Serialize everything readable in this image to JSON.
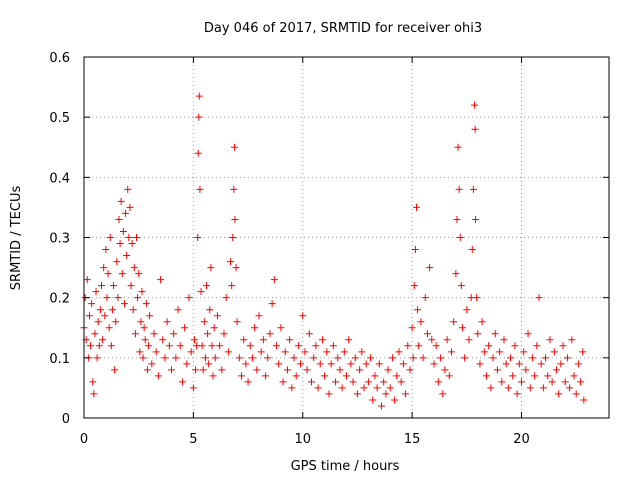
{
  "chart_data": {
    "type": "scatter",
    "title": "Day 046 of 2017, SRMTID for receiver ohi3",
    "xlabel": "GPS time / hours",
    "ylabel": "SRMTID / TECUs",
    "xlim": [
      0,
      24
    ],
    "ylim": [
      0,
      0.6
    ],
    "xticks": [
      0,
      5,
      10,
      15,
      20
    ],
    "yticks": [
      0,
      0.1,
      0.2,
      0.3,
      0.4,
      0.5,
      0.6
    ],
    "xtick_labels": [
      "0",
      "5",
      "10",
      "15",
      "20"
    ],
    "ytick_labels": [
      "0",
      "0.1",
      "0.2",
      "0.3",
      "0.4",
      "0.5",
      "0.6"
    ],
    "grid": true,
    "marker": "plus",
    "marker_color": "#ff0000",
    "series": [
      {
        "name": "SRMTID",
        "points": [
          [
            0.0,
            0.15
          ],
          [
            0.05,
            0.2
          ],
          [
            0.1,
            0.13
          ],
          [
            0.15,
            0.23
          ],
          [
            0.2,
            0.1
          ],
          [
            0.25,
            0.17
          ],
          [
            0.3,
            0.12
          ],
          [
            0.35,
            0.19
          ],
          [
            0.4,
            0.06
          ],
          [
            0.45,
            0.04
          ],
          [
            0.5,
            0.14
          ],
          [
            0.55,
            0.21
          ],
          [
            0.6,
            0.1
          ],
          [
            0.65,
            0.16
          ],
          [
            0.7,
            0.12
          ],
          [
            0.75,
            0.18
          ],
          [
            0.8,
            0.22
          ],
          [
            0.85,
            0.13
          ],
          [
            0.9,
            0.25
          ],
          [
            0.95,
            0.17
          ],
          [
            1.0,
            0.28
          ],
          [
            1.05,
            0.2
          ],
          [
            1.1,
            0.24
          ],
          [
            1.15,
            0.15
          ],
          [
            1.2,
            0.3
          ],
          [
            1.25,
            0.12
          ],
          [
            1.3,
            0.18
          ],
          [
            1.35,
            0.22
          ],
          [
            1.4,
            0.08
          ],
          [
            1.45,
            0.16
          ],
          [
            1.5,
            0.26
          ],
          [
            1.55,
            0.2
          ],
          [
            1.6,
            0.33
          ],
          [
            1.65,
            0.29
          ],
          [
            1.7,
            0.36
          ],
          [
            1.75,
            0.24
          ],
          [
            1.8,
            0.31
          ],
          [
            1.85,
            0.19
          ],
          [
            1.9,
            0.34
          ],
          [
            1.95,
            0.27
          ],
          [
            2.0,
            0.38
          ],
          [
            2.05,
            0.3
          ],
          [
            2.1,
            0.35
          ],
          [
            2.15,
            0.22
          ],
          [
            2.2,
            0.29
          ],
          [
            2.25,
            0.18
          ],
          [
            2.3,
            0.25
          ],
          [
            2.35,
            0.14
          ],
          [
            2.4,
            0.3
          ],
          [
            2.45,
            0.2
          ],
          [
            2.5,
            0.24
          ],
          [
            2.55,
            0.11
          ],
          [
            2.6,
            0.16
          ],
          [
            2.65,
            0.21
          ],
          [
            2.7,
            0.1
          ],
          [
            2.75,
            0.15
          ],
          [
            2.8,
            0.13
          ],
          [
            2.85,
            0.19
          ],
          [
            2.9,
            0.08
          ],
          [
            2.95,
            0.12
          ],
          [
            3.0,
            0.17
          ],
          [
            3.1,
            0.09
          ],
          [
            3.2,
            0.14
          ],
          [
            3.3,
            0.11
          ],
          [
            3.4,
            0.07
          ],
          [
            3.5,
            0.23
          ],
          [
            3.6,
            0.13
          ],
          [
            3.7,
            0.1
          ],
          [
            3.8,
            0.16
          ],
          [
            3.9,
            0.12
          ],
          [
            4.0,
            0.08
          ],
          [
            4.1,
            0.14
          ],
          [
            4.2,
            0.1
          ],
          [
            4.3,
            0.18
          ],
          [
            4.4,
            0.12
          ],
          [
            4.5,
            0.06
          ],
          [
            4.6,
            0.15
          ],
          [
            4.7,
            0.09
          ],
          [
            4.8,
            0.2
          ],
          [
            4.9,
            0.11
          ],
          [
            5.0,
            0.05
          ],
          [
            5.05,
            0.13
          ],
          [
            5.1,
            0.08
          ],
          [
            5.15,
            0.12
          ],
          [
            5.2,
            0.3
          ],
          [
            5.22,
            0.44
          ],
          [
            5.25,
            0.5
          ],
          [
            5.27,
            0.535
          ],
          [
            5.3,
            0.38
          ],
          [
            5.35,
            0.21
          ],
          [
            5.4,
            0.12
          ],
          [
            5.45,
            0.08
          ],
          [
            5.5,
            0.16
          ],
          [
            5.55,
            0.1
          ],
          [
            5.6,
            0.22
          ],
          [
            5.65,
            0.14
          ],
          [
            5.7,
            0.09
          ],
          [
            5.75,
            0.18
          ],
          [
            5.8,
            0.25
          ],
          [
            5.85,
            0.12
          ],
          [
            5.9,
            0.07
          ],
          [
            5.95,
            0.15
          ],
          [
            6.0,
            0.1
          ],
          [
            6.1,
            0.17
          ],
          [
            6.2,
            0.12
          ],
          [
            6.3,
            0.08
          ],
          [
            6.4,
            0.14
          ],
          [
            6.5,
            0.2
          ],
          [
            6.6,
            0.11
          ],
          [
            6.7,
            0.26
          ],
          [
            6.75,
            0.22
          ],
          [
            6.8,
            0.3
          ],
          [
            6.85,
            0.38
          ],
          [
            6.88,
            0.45
          ],
          [
            6.9,
            0.33
          ],
          [
            6.95,
            0.25
          ],
          [
            7.0,
            0.16
          ],
          [
            7.1,
            0.1
          ],
          [
            7.2,
            0.07
          ],
          [
            7.3,
            0.13
          ],
          [
            7.4,
            0.09
          ],
          [
            7.5,
            0.06
          ],
          [
            7.6,
            0.12
          ],
          [
            7.7,
            0.1
          ],
          [
            7.8,
            0.15
          ],
          [
            7.9,
            0.08
          ],
          [
            8.0,
            0.17
          ],
          [
            8.1,
            0.11
          ],
          [
            8.2,
            0.13
          ],
          [
            8.3,
            0.07
          ],
          [
            8.4,
            0.1
          ],
          [
            8.5,
            0.14
          ],
          [
            8.6,
            0.19
          ],
          [
            8.7,
            0.23
          ],
          [
            8.8,
            0.12
          ],
          [
            8.9,
            0.09
          ],
          [
            9.0,
            0.15
          ],
          [
            9.1,
            0.06
          ],
          [
            9.2,
            0.11
          ],
          [
            9.3,
            0.08
          ],
          [
            9.4,
            0.13
          ],
          [
            9.5,
            0.05
          ],
          [
            9.6,
            0.1
          ],
          [
            9.7,
            0.07
          ],
          [
            9.8,
            0.12
          ],
          [
            9.9,
            0.09
          ],
          [
            10.0,
            0.17
          ],
          [
            10.1,
            0.11
          ],
          [
            10.2,
            0.08
          ],
          [
            10.3,
            0.14
          ],
          [
            10.4,
            0.06
          ],
          [
            10.5,
            0.1
          ],
          [
            10.6,
            0.12
          ],
          [
            10.7,
            0.05
          ],
          [
            10.8,
            0.09
          ],
          [
            10.9,
            0.13
          ],
          [
            11.0,
            0.07
          ],
          [
            11.1,
            0.11
          ],
          [
            11.2,
            0.04
          ],
          [
            11.3,
            0.09
          ],
          [
            11.4,
            0.12
          ],
          [
            11.5,
            0.06
          ],
          [
            11.6,
            0.1
          ],
          [
            11.7,
            0.08
          ],
          [
            11.8,
            0.05
          ],
          [
            11.9,
            0.11
          ],
          [
            12.0,
            0.07
          ],
          [
            12.1,
            0.13
          ],
          [
            12.2,
            0.09
          ],
          [
            12.3,
            0.06
          ],
          [
            12.4,
            0.1
          ],
          [
            12.5,
            0.04
          ],
          [
            12.6,
            0.08
          ],
          [
            12.7,
            0.11
          ],
          [
            12.8,
            0.05
          ],
          [
            12.9,
            0.09
          ],
          [
            13.0,
            0.06
          ],
          [
            13.1,
            0.1
          ],
          [
            13.2,
            0.03
          ],
          [
            13.3,
            0.07
          ],
          [
            13.4,
            0.05
          ],
          [
            13.5,
            0.09
          ],
          [
            13.6,
            0.02
          ],
          [
            13.7,
            0.06
          ],
          [
            13.8,
            0.04
          ],
          [
            13.9,
            0.08
          ],
          [
            14.0,
            0.05
          ],
          [
            14.1,
            0.1
          ],
          [
            14.2,
            0.03
          ],
          [
            14.3,
            0.07
          ],
          [
            14.4,
            0.11
          ],
          [
            14.5,
            0.06
          ],
          [
            14.6,
            0.09
          ],
          [
            14.7,
            0.04
          ],
          [
            14.8,
            0.12
          ],
          [
            14.9,
            0.08
          ],
          [
            15.0,
            0.15
          ],
          [
            15.05,
            0.1
          ],
          [
            15.1,
            0.22
          ],
          [
            15.15,
            0.28
          ],
          [
            15.2,
            0.35
          ],
          [
            15.25,
            0.18
          ],
          [
            15.3,
            0.12
          ],
          [
            15.4,
            0.16
          ],
          [
            15.5,
            0.1
          ],
          [
            15.6,
            0.2
          ],
          [
            15.7,
            0.14
          ],
          [
            15.8,
            0.25
          ],
          [
            15.9,
            0.13
          ],
          [
            16.0,
            0.09
          ],
          [
            16.1,
            0.12
          ],
          [
            16.2,
            0.06
          ],
          [
            16.3,
            0.1
          ],
          [
            16.4,
            0.04
          ],
          [
            16.5,
            0.08
          ],
          [
            16.6,
            0.13
          ],
          [
            16.7,
            0.07
          ],
          [
            16.8,
            0.11
          ],
          [
            16.9,
            0.16
          ],
          [
            17.0,
            0.24
          ],
          [
            17.05,
            0.33
          ],
          [
            17.1,
            0.45
          ],
          [
            17.15,
            0.38
          ],
          [
            17.2,
            0.3
          ],
          [
            17.25,
            0.22
          ],
          [
            17.3,
            0.15
          ],
          [
            17.4,
            0.1
          ],
          [
            17.5,
            0.18
          ],
          [
            17.6,
            0.13
          ],
          [
            17.7,
            0.2
          ],
          [
            17.75,
            0.28
          ],
          [
            17.8,
            0.38
          ],
          [
            17.85,
            0.52
          ],
          [
            17.88,
            0.48
          ],
          [
            17.9,
            0.33
          ],
          [
            17.95,
            0.2
          ],
          [
            18.0,
            0.14
          ],
          [
            18.1,
            0.09
          ],
          [
            18.2,
            0.16
          ],
          [
            18.3,
            0.11
          ],
          [
            18.4,
            0.07
          ],
          [
            18.5,
            0.12
          ],
          [
            18.6,
            0.05
          ],
          [
            18.7,
            0.1
          ],
          [
            18.8,
            0.14
          ],
          [
            18.9,
            0.08
          ],
          [
            19.0,
            0.11
          ],
          [
            19.1,
            0.06
          ],
          [
            19.2,
            0.13
          ],
          [
            19.3,
            0.09
          ],
          [
            19.4,
            0.05
          ],
          [
            19.5,
            0.1
          ],
          [
            19.6,
            0.07
          ],
          [
            19.7,
            0.12
          ],
          [
            19.8,
            0.04
          ],
          [
            19.9,
            0.09
          ],
          [
            20.0,
            0.06
          ],
          [
            20.1,
            0.11
          ],
          [
            20.2,
            0.08
          ],
          [
            20.3,
            0.14
          ],
          [
            20.4,
            0.05
          ],
          [
            20.5,
            0.1
          ],
          [
            20.6,
            0.07
          ],
          [
            20.7,
            0.12
          ],
          [
            20.8,
            0.2
          ],
          [
            20.9,
            0.09
          ],
          [
            21.0,
            0.05
          ],
          [
            21.1,
            0.1
          ],
          [
            21.2,
            0.07
          ],
          [
            21.3,
            0.13
          ],
          [
            21.4,
            0.06
          ],
          [
            21.5,
            0.11
          ],
          [
            21.6,
            0.08
          ],
          [
            21.7,
            0.04
          ],
          [
            21.8,
            0.09
          ],
          [
            21.9,
            0.12
          ],
          [
            22.0,
            0.06
          ],
          [
            22.1,
            0.1
          ],
          [
            22.2,
            0.05
          ],
          [
            22.3,
            0.13
          ],
          [
            22.4,
            0.07
          ],
          [
            22.5,
            0.04
          ],
          [
            22.6,
            0.09
          ],
          [
            22.7,
            0.06
          ],
          [
            22.8,
            0.11
          ],
          [
            22.85,
            0.03
          ]
        ]
      }
    ]
  }
}
